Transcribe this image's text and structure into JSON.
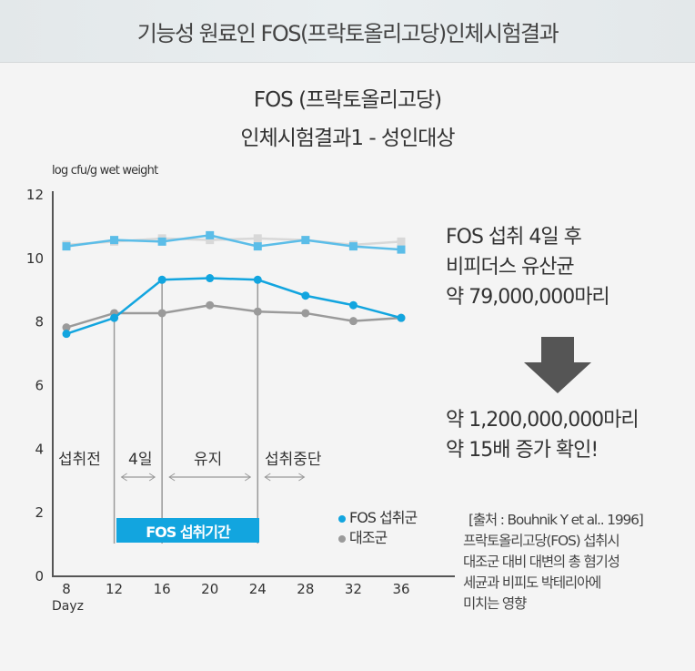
{
  "header": {
    "title": "기능성 원료인 FOS(프락토올리고당)인체시험결과"
  },
  "chart_data": {
    "type": "line",
    "title": [
      "FOS (프락토올리고당)",
      "인체시험결과1 - 성인대상"
    ],
    "ylabel": "log cfu/g wet weight",
    "xlabel": "Dayz",
    "ylim": [
      0,
      12
    ],
    "yticks": [
      "0",
      "2",
      "4",
      "6",
      "8",
      "10",
      "12"
    ],
    "x": [
      8,
      12,
      16,
      20,
      24,
      28,
      32,
      36
    ],
    "xticks": [
      "8",
      "12",
      "16",
      "20",
      "24",
      "28",
      "32",
      "36"
    ],
    "series": [
      {
        "name": "FOS 섭취군",
        "marker": "circle",
        "color": "#12a5df",
        "values": [
          7.6,
          8.1,
          9.3,
          9.35,
          9.3,
          8.8,
          8.5,
          8.1
        ]
      },
      {
        "name": "대조군",
        "marker": "circle",
        "color": "#9a9a9a",
        "values": [
          7.8,
          8.25,
          8.25,
          8.5,
          8.3,
          8.25,
          8.0,
          8.1
        ]
      },
      {
        "name": "FOS 섭취군 (square)",
        "marker": "square",
        "color": "#5bbde8",
        "values": [
          10.35,
          10.55,
          10.5,
          10.7,
          10.35,
          10.55,
          10.35,
          10.25
        ]
      },
      {
        "name": "대조군 (square)",
        "marker": "square",
        "color": "#d8d8d8",
        "values": [
          10.4,
          10.5,
          10.6,
          10.55,
          10.6,
          10.55,
          10.4,
          10.5
        ]
      }
    ],
    "periods": [
      {
        "label": "섭취전"
      },
      {
        "label": "4일"
      },
      {
        "label": "유지"
      },
      {
        "label": "섭취중단"
      }
    ],
    "period_box": "FOS 섭취기간",
    "legend": [
      "FOS 섭취군",
      "대조군"
    ]
  },
  "note": {
    "line1": "FOS 섭취 4일 후",
    "line2": "비피더스 유산균",
    "line3": "약 79,000,000마리",
    "line4": "약 1,200,000,000마리",
    "line5": "약 15배 증가 확인!"
  },
  "source": {
    "lines": [
      "[출처 : Bouhnik Y et al.. 1996]",
      "프락토올리고당(FOS) 섭취시",
      "대조군 대비 대변의 총 혐기성",
      "세균과 비피도 박테리아에",
      "미치는 영향"
    ]
  }
}
